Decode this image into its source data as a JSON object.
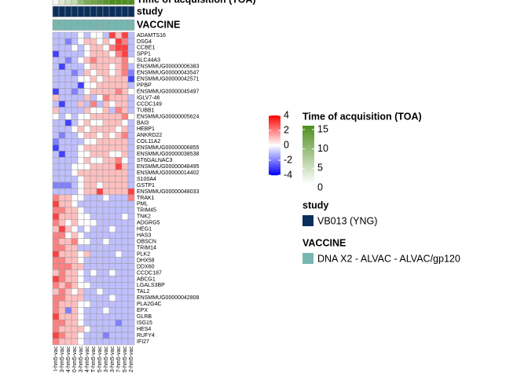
{
  "chart_data": {
    "type": "heatmap",
    "rows": [
      "ADAMTS16",
      "DSG4",
      "CCBE1",
      "SPP1",
      "SLC44A3",
      "ENSMMUG00000006383",
      "ENSMMUG00000043547",
      "ENSMMUG00000042571",
      "PPBP",
      "ENSMMUG00000045497",
      "IGLV7-46",
      "CCDC149",
      "TUBB1",
      "ENSMMUG00000005624",
      "BAI3",
      "HEBP1",
      "ANKRD22",
      "COL11A2",
      "ENSMMUG00000006855",
      "ENSMMUG00000038538",
      "ST6GALNAC3",
      "ENSMMUG00000048495",
      "ENSMMUG00000014402",
      "S100A4",
      "GSTP1",
      "ENSMMUG00000048033",
      "TRAK1",
      "PML",
      "TRIM45",
      "TNK2",
      "ADGRG5",
      "HEG1",
      "HAS3",
      "OBSCN",
      "TRIM14",
      "PLK2",
      "DHX58",
      "DDX60",
      "CCDC187",
      "ABCG1",
      "LGALS3BP",
      "TAL2",
      "ENSMMUG00000042808",
      "PLA2G4C",
      "EPX",
      "GLRB",
      "ISG15",
      "HES4",
      "RUFY4",
      "IFI27"
    ],
    "columns": [
      "I-hm5-vac",
      "3-hm5-vac",
      "4-hm5-vac",
      "0-hm5-vac",
      "3-hm5-vac",
      "4-hm5-vac",
      "T-hm5-vac",
      "5-hm5-vac",
      "3-hm5-vac",
      "3-hm5-vac",
      "7-hm5-vac",
      "5-hm5-vac",
      "2-hm5-vac"
    ],
    "values": [
      [
        -1,
        -1,
        -1,
        -1,
        0,
        -1,
        0,
        0,
        -1,
        3,
        1,
        3,
        -1
      ],
      [
        -1,
        -1,
        -2,
        -1,
        0,
        1,
        1,
        0,
        1,
        0,
        3,
        2,
        -1
      ],
      [
        -1,
        -1,
        -1,
        0,
        -1,
        0,
        1,
        1,
        0,
        2,
        3,
        3,
        -1
      ],
      [
        -3,
        -1,
        -1,
        -1,
        -1,
        0,
        1,
        1,
        1,
        0,
        2,
        3,
        -1
      ],
      [
        -1,
        -1,
        -2,
        -1,
        0,
        1,
        2,
        1,
        1,
        1,
        1,
        2,
        0
      ],
      [
        -1,
        -3,
        -1,
        -1,
        -1,
        0,
        1,
        1,
        1,
        0,
        1,
        2,
        -1
      ],
      [
        -1,
        -1,
        -1,
        -2,
        -1,
        1,
        0,
        1,
        1,
        0,
        1,
        2,
        -2
      ],
      [
        -1,
        -1,
        -1,
        -1,
        0,
        0,
        1,
        0,
        1,
        1,
        1,
        1,
        -3
      ],
      [
        -1,
        -1,
        -1,
        -1,
        -3,
        0,
        0,
        1,
        1,
        1,
        1,
        1,
        -1
      ],
      [
        -3,
        -1,
        -1,
        -2,
        -1,
        0,
        1,
        1,
        1,
        1,
        2,
        1,
        0
      ],
      [
        1,
        -1,
        -1,
        -1,
        -1,
        1,
        -1,
        0,
        2,
        1,
        1,
        1,
        -1
      ],
      [
        -1,
        -3,
        -1,
        -1,
        1,
        -1,
        2,
        -1,
        1,
        0,
        1,
        1,
        -1
      ],
      [
        1,
        -1,
        -1,
        -1,
        -1,
        1,
        0,
        0,
        1,
        -1,
        2,
        1,
        -1
      ],
      [
        0,
        -1,
        0,
        -1,
        0,
        0,
        1,
        1,
        1,
        1,
        1,
        2,
        0
      ],
      [
        -1,
        -1,
        -3,
        -1,
        0,
        1,
        0,
        0,
        1,
        1,
        1,
        0,
        -1
      ],
      [
        -1,
        -1,
        -1,
        0,
        1,
        0,
        1,
        1,
        1,
        1,
        0,
        1,
        -1
      ],
      [
        -1,
        -2,
        -1,
        -1,
        0,
        1,
        1,
        0,
        1,
        0,
        1,
        2,
        -1
      ],
      [
        -2,
        -1,
        -1,
        -1,
        -1,
        0,
        0,
        1,
        1,
        1,
        1,
        1,
        -1
      ],
      [
        -3,
        -1,
        -1,
        -1,
        0,
        1,
        1,
        1,
        1,
        1,
        1,
        1,
        -1
      ],
      [
        -1,
        -3,
        -1,
        -1,
        0,
        0,
        1,
        1,
        1,
        0,
        0,
        1,
        -1
      ],
      [
        -1,
        -1,
        -1,
        -1,
        0,
        1,
        0,
        0,
        1,
        1,
        2,
        0,
        -1
      ],
      [
        -1,
        -1,
        -1,
        0,
        0,
        0,
        1,
        1,
        1,
        1,
        3,
        1,
        -1
      ],
      [
        -1,
        -1,
        -1,
        0,
        1,
        1,
        1,
        1,
        1,
        1,
        1,
        1,
        -1
      ],
      [
        -1,
        -1,
        -1,
        -1,
        0,
        1,
        1,
        1,
        1,
        1,
        1,
        1,
        -1
      ],
      [
        -2,
        -2,
        -2,
        -1,
        0,
        1,
        1,
        0,
        1,
        1,
        1,
        1,
        -1
      ],
      [
        -1,
        -1,
        -1,
        -1,
        0,
        1,
        1,
        3,
        1,
        1,
        1,
        1,
        3
      ],
      [
        2,
        1,
        1,
        0,
        0,
        -1,
        -1,
        -1,
        0,
        -1,
        -1,
        -1,
        2
      ],
      [
        3,
        1,
        1,
        0,
        -1,
        -1,
        -1,
        -1,
        -1,
        -1,
        -1,
        -1,
        -1
      ],
      [
        2,
        2,
        1,
        1,
        0,
        -1,
        -1,
        -1,
        -1,
        -1,
        -1,
        -1,
        -1
      ],
      [
        3,
        1,
        1,
        1,
        0,
        0,
        -1,
        -1,
        -1,
        -1,
        -1,
        0,
        -1
      ],
      [
        2,
        1,
        0,
        1,
        0,
        0,
        0,
        -1,
        -1,
        -1,
        -1,
        -1,
        -1
      ],
      [
        1,
        3,
        1,
        0,
        -1,
        0,
        -1,
        -1,
        -1,
        0,
        -1,
        -1,
        -1
      ],
      [
        2,
        2,
        0,
        1,
        0,
        -1,
        -1,
        -1,
        -1,
        -1,
        -1,
        -1,
        -1
      ],
      [
        2,
        1,
        1,
        2,
        0,
        0,
        -1,
        -1,
        0,
        -1,
        -1,
        -1,
        -1
      ],
      [
        2,
        2,
        1,
        1,
        -1,
        -1,
        -1,
        -1,
        -1,
        -1,
        -1,
        -1,
        -1
      ],
      [
        3,
        1,
        1,
        1,
        0,
        1,
        -1,
        -1,
        -1,
        -1,
        0,
        -1,
        -1
      ],
      [
        2,
        2,
        1,
        1,
        0,
        -1,
        -1,
        -1,
        -1,
        -1,
        -1,
        -1,
        -1
      ],
      [
        2,
        2,
        2,
        1,
        1,
        -1,
        -1,
        -1,
        -1,
        -1,
        -1,
        -1,
        -1
      ],
      [
        1,
        2,
        1,
        1,
        0,
        -1,
        0,
        -1,
        -1,
        0,
        -1,
        -1,
        -1
      ],
      [
        3,
        2,
        1,
        1,
        0,
        -1,
        -1,
        -1,
        -1,
        -1,
        -1,
        -1,
        -1
      ],
      [
        2,
        1,
        2,
        1,
        0,
        0,
        -1,
        -1,
        -1,
        -1,
        -1,
        -1,
        -1
      ],
      [
        1,
        2,
        1,
        0,
        1,
        -1,
        -1,
        0,
        -1,
        -1,
        -1,
        -1,
        -1
      ],
      [
        2,
        2,
        1,
        1,
        1,
        -1,
        -1,
        -1,
        -1,
        0,
        -1,
        -1,
        -1
      ],
      [
        2,
        1,
        1,
        1,
        0,
        0,
        -1,
        -1,
        -1,
        -1,
        -1,
        -1,
        -1
      ],
      [
        2,
        1,
        -2,
        1,
        0,
        -1,
        -1,
        -1,
        0,
        -1,
        -1,
        -1,
        -1
      ],
      [
        3,
        1,
        1,
        1,
        0,
        -1,
        -1,
        -1,
        -1,
        -1,
        -1,
        -1,
        -1
      ],
      [
        2,
        2,
        1,
        1,
        0,
        -1,
        -1,
        -1,
        -1,
        -1,
        -2,
        -1,
        -1
      ],
      [
        2,
        1,
        1,
        1,
        1,
        0,
        -1,
        -1,
        -1,
        -1,
        -1,
        -1,
        -1
      ],
      [
        3,
        2,
        1,
        1,
        0,
        -1,
        -1,
        -1,
        -2,
        -1,
        -1,
        -1,
        -1
      ],
      [
        2,
        1,
        1,
        1,
        0,
        -1,
        -1,
        -1,
        -1,
        -1,
        -1,
        -1,
        -1
      ]
    ],
    "zlim": [
      -4,
      4
    ],
    "zticks": [
      4,
      2,
      0,
      -2,
      -4
    ],
    "colors": [
      "#0000FF",
      "#FFFFFF",
      "#FF0000"
    ],
    "annotations": [
      {
        "name": "Time of acquisition (TOA)",
        "values": [
          1,
          3,
          4,
          5,
          9,
          11,
          12,
          13,
          14,
          15,
          15,
          15,
          15
        ],
        "lim": [
          0,
          15
        ],
        "ticks": [
          15,
          10,
          5,
          0
        ],
        "colors": [
          "#FFFFFF",
          "#4E8F1C"
        ]
      },
      {
        "name": "study",
        "label": "VB013 (YNG)",
        "color": "#0B2F5B"
      },
      {
        "name": "VACCINE",
        "label": "DNA X2 - ALVAC - ALVAC/gp120",
        "color": "#76B7B2"
      }
    ]
  }
}
